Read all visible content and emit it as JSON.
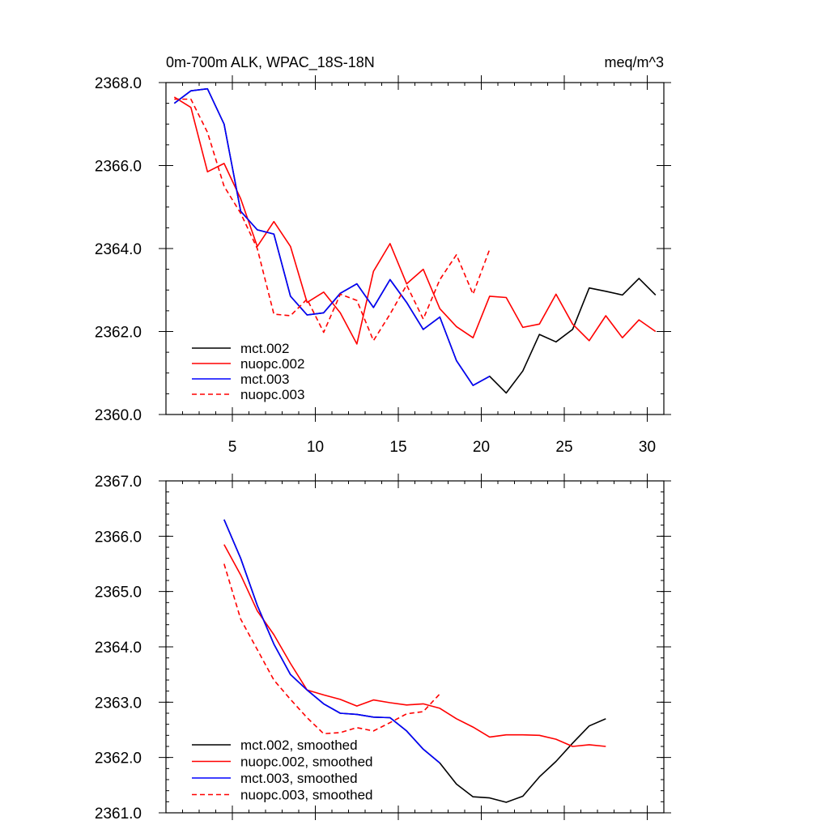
{
  "chart_data": [
    {
      "type": "line",
      "title_left": "0m-700m ALK, WPAC_18S-18N",
      "title_right": "meq/m^3",
      "xlim": [
        1,
        31
      ],
      "ylim": [
        2360,
        2368
      ],
      "xticks": [
        5,
        10,
        15,
        20,
        25,
        30
      ],
      "xtick_labels": [
        "5",
        "10",
        "15",
        "20",
        "25",
        "30"
      ],
      "yticks": [
        2360,
        2362,
        2364,
        2366,
        2368
      ],
      "ytick_labels": [
        "2360.0",
        "2362.0",
        "2364.0",
        "2366.0",
        "2368.0"
      ],
      "legend_position": "bottom-left",
      "series": [
        {
          "name": "mct.002",
          "color": "#000000",
          "dash": false,
          "x": [
            1.5,
            2.5,
            3.5,
            4.5,
            5.5,
            6.5,
            7.5,
            8.5,
            9.5,
            10.5,
            11.5,
            12.5,
            13.5,
            14.5,
            15.5,
            16.5,
            17.5,
            18.5,
            19.5,
            20.5,
            21.5,
            22.5,
            23.5,
            24.5,
            25.5,
            26.5,
            27.5,
            28.5,
            29.5,
            30.5
          ],
          "y": [
            2367.5,
            2367.8,
            2367.85,
            2367.0,
            2364.9,
            2364.45,
            2364.35,
            2362.85,
            2362.4,
            2362.45,
            2362.92,
            2363.15,
            2362.58,
            2363.25,
            2362.7,
            2362.05,
            2362.35,
            2361.3,
            2360.7,
            2360.92,
            2360.52,
            2361.05,
            2361.93,
            2361.75,
            2362.05,
            2363.05,
            2362.97,
            2362.88,
            2363.28,
            2362.88
          ]
        },
        {
          "name": "nuopc.002",
          "color": "#ff0000",
          "dash": false,
          "x": [
            1.5,
            2.5,
            3.5,
            4.5,
            5.5,
            6.5,
            7.5,
            8.5,
            9.5,
            10.5,
            11.5,
            12.5,
            13.5,
            14.5,
            15.5,
            16.5,
            17.5,
            18.5,
            19.5,
            20.5,
            21.5,
            22.5,
            23.5,
            24.5,
            25.5,
            26.5,
            27.5,
            28.5,
            29.5,
            30.5
          ],
          "y": [
            2367.65,
            2367.4,
            2365.85,
            2366.05,
            2365.2,
            2364.05,
            2364.65,
            2364.05,
            2362.7,
            2362.95,
            2362.45,
            2361.7,
            2363.45,
            2364.12,
            2363.15,
            2363.5,
            2362.55,
            2362.12,
            2361.85,
            2362.85,
            2362.82,
            2362.1,
            2362.18,
            2362.9,
            2362.18,
            2361.78,
            2362.38,
            2361.85,
            2362.28,
            2362.0
          ]
        },
        {
          "name": "mct.003",
          "color": "#0000ff",
          "dash": false,
          "x": [
            1.5,
            2.5,
            3.5,
            4.5,
            5.5,
            6.5,
            7.5,
            8.5,
            9.5,
            10.5,
            11.5,
            12.5,
            13.5,
            14.5,
            15.5,
            16.5,
            17.5,
            18.5,
            19.5,
            20.5
          ],
          "y": [
            2367.5,
            2367.8,
            2367.85,
            2367.0,
            2364.9,
            2364.45,
            2364.35,
            2362.85,
            2362.4,
            2362.45,
            2362.92,
            2363.15,
            2362.58,
            2363.25,
            2362.7,
            2362.05,
            2362.35,
            2361.3,
            2360.7,
            2360.92
          ]
        },
        {
          "name": "nuopc.003",
          "color": "#ff0000",
          "dash": true,
          "x": [
            1.5,
            2.5,
            3.5,
            4.5,
            5.5,
            6.5,
            7.5,
            8.5,
            9.5,
            10.5,
            11.5,
            12.5,
            13.5,
            14.5,
            15.5,
            16.5,
            17.5,
            18.5,
            19.5,
            20.5
          ],
          "y": [
            2367.6,
            2367.6,
            2366.8,
            2365.5,
            2364.85,
            2364.0,
            2362.42,
            2362.38,
            2362.78,
            2361.98,
            2362.9,
            2362.75,
            2361.78,
            2362.42,
            2363.12,
            2362.3,
            2363.25,
            2363.85,
            2362.9,
            2363.98
          ]
        }
      ]
    },
    {
      "type": "line",
      "xlim": [
        1,
        31
      ],
      "ylim": [
        2361,
        2367
      ],
      "xticks": [
        5,
        10,
        15,
        20,
        25,
        30
      ],
      "yticks": [
        2361,
        2362,
        2363,
        2364,
        2365,
        2366,
        2367
      ],
      "ytick_labels": [
        "2361.0",
        "2362.0",
        "2363.0",
        "2364.0",
        "2365.0",
        "2366.0",
        "2367.0"
      ],
      "legend_position": "bottom-left",
      "series": [
        {
          "name": "mct.002, smoothed",
          "color": "#000000",
          "dash": false,
          "x": [
            4.5,
            5.5,
            6.5,
            7.5,
            8.5,
            9.5,
            10.5,
            11.5,
            12.5,
            13.5,
            14.5,
            15.5,
            16.5,
            17.5,
            18.5,
            19.5,
            20.5,
            21.5,
            22.5,
            23.5,
            24.5,
            25.5,
            26.5,
            27.5
          ],
          "y": [
            2366.3,
            2365.6,
            2364.75,
            2364.05,
            2363.5,
            2363.22,
            2362.97,
            2362.8,
            2362.78,
            2362.73,
            2362.72,
            2362.48,
            2362.15,
            2361.9,
            2361.52,
            2361.29,
            2361.27,
            2361.19,
            2361.3,
            2361.65,
            2361.93,
            2362.26,
            2362.57,
            2362.7
          ]
        },
        {
          "name": "nuopc.002, smoothed",
          "color": "#ff0000",
          "dash": false,
          "x": [
            4.5,
            5.5,
            6.5,
            7.5,
            8.5,
            9.5,
            10.5,
            11.5,
            12.5,
            13.5,
            14.5,
            15.5,
            16.5,
            17.5,
            18.5,
            19.5,
            20.5,
            21.5,
            22.5,
            23.5,
            24.5,
            25.5,
            26.5,
            27.5
          ],
          "y": [
            2365.85,
            2365.3,
            2364.65,
            2364.22,
            2363.7,
            2363.22,
            2363.13,
            2363.05,
            2362.93,
            2363.04,
            2362.99,
            2362.95,
            2362.97,
            2362.89,
            2362.7,
            2362.55,
            2362.37,
            2362.41,
            2362.41,
            2362.4,
            2362.33,
            2362.2,
            2362.23,
            2362.2
          ]
        },
        {
          "name": "mct.003, smoothed",
          "color": "#0000ff",
          "dash": false,
          "x": [
            4.5,
            5.5,
            6.5,
            7.5,
            8.5,
            9.5,
            10.5,
            11.5,
            12.5,
            13.5,
            14.5,
            15.5,
            16.5,
            17.5
          ],
          "y": [
            2366.3,
            2365.6,
            2364.75,
            2364.05,
            2363.5,
            2363.22,
            2362.97,
            2362.8,
            2362.78,
            2362.73,
            2362.72,
            2362.48,
            2362.15,
            2361.9
          ]
        },
        {
          "name": "nuopc.003, smoothed",
          "color": "#ff0000",
          "dash": true,
          "x": [
            4.5,
            5.5,
            6.5,
            7.5,
            8.5,
            9.5,
            10.5,
            11.5,
            12.5,
            13.5,
            14.5,
            15.5,
            16.5,
            17.5
          ],
          "y": [
            2365.5,
            2364.5,
            2363.95,
            2363.4,
            2363.05,
            2362.72,
            2362.43,
            2362.45,
            2362.54,
            2362.48,
            2362.63,
            2362.79,
            2362.83,
            2363.15
          ]
        }
      ]
    }
  ]
}
